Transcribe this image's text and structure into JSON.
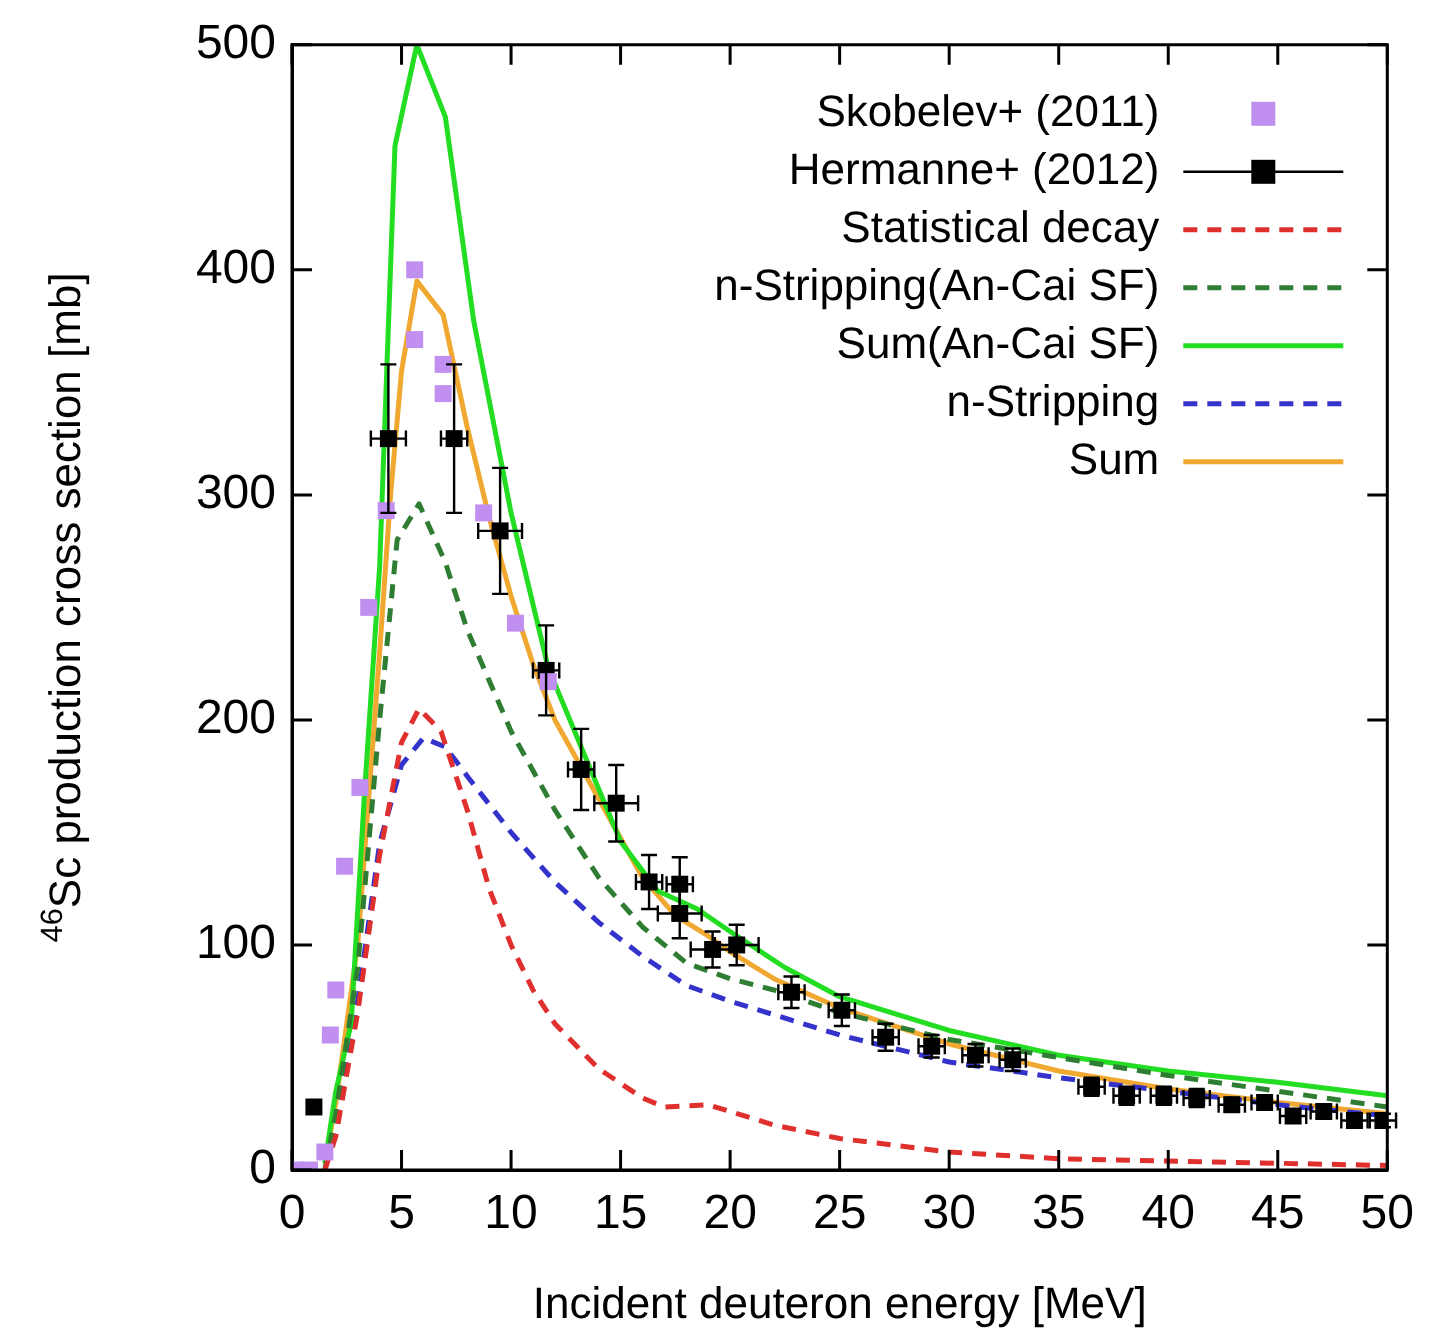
{
  "chart_data": {
    "type": "line",
    "xlabel": "Incident deuteron energy [MeV]",
    "ylabel": "$^{46}$Sc production cross section [mb]",
    "xlim": [
      0,
      50
    ],
    "xticks": [
      0,
      5,
      10,
      15,
      20,
      25,
      30,
      35,
      40,
      45,
      50
    ],
    "ylim": [
      0,
      500
    ],
    "yticks": [
      0,
      100,
      200,
      300,
      400,
      500
    ],
    "grid": false,
    "legend": "top right",
    "series": [
      {
        "name": "Skobelev+ (2011)",
        "type": "scatter",
        "marker": "square",
        "color": "#c08ff0",
        "x": [
          0.2,
          0.8,
          1.5,
          1.75,
          2.0,
          2.4,
          3.1,
          3.5,
          4.3,
          5.6,
          5.6,
          6.9,
          6.9,
          8.75,
          10.2,
          11.7
        ],
        "values": [
          0,
          0,
          8,
          60,
          80,
          135,
          170,
          250,
          293,
          400,
          369,
          358,
          345,
          292,
          243,
          217
        ]
      },
      {
        "name": "Hermanne+ (2012)",
        "type": "scatter",
        "marker": "square",
        "color": "#000000",
        "x": [
          1.0,
          4.4,
          7.4,
          9.5,
          11.6,
          13.2,
          14.8,
          16.3,
          17.7,
          17.7,
          19.2,
          20.3,
          22.8,
          25.1,
          27.1,
          29.2,
          31.2,
          32.9,
          36.5,
          38.1,
          39.8,
          41.3,
          42.9,
          44.4,
          45.7,
          47.1,
          48.5,
          49.8
        ],
        "values": [
          28,
          325,
          325,
          284,
          222,
          178,
          163,
          128,
          127,
          114,
          98,
          100,
          79,
          71,
          59,
          55,
          51,
          49,
          37,
          33,
          33,
          32,
          29,
          30,
          24,
          26,
          22,
          22
        ],
        "errors": [
          2,
          33,
          33,
          28,
          20,
          18,
          17,
          12,
          12,
          11,
          8,
          9,
          7,
          7,
          6,
          5,
          5,
          5,
          4,
          4,
          4,
          4,
          3,
          3,
          3,
          3,
          3,
          3
        ],
        "xerrors": [
          0.3,
          0.8,
          0.6,
          1,
          0.6,
          0.6,
          1,
          0.6,
          0.6,
          1,
          1,
          1,
          0.6,
          0.6,
          0.6,
          0.6,
          0.6,
          0.6,
          0.6,
          0.6,
          0.6,
          0.6,
          0.6,
          0.6,
          0.6,
          0.6,
          0.6,
          0.6
        ]
      },
      {
        "name": "Statistical decay",
        "type": "line",
        "marker": "none",
        "line_style": "dashed",
        "color": "#e0302e",
        "x": [
          1.5,
          2,
          3,
          4,
          5,
          5.8,
          6.8,
          8,
          9,
          10,
          11,
          12,
          14,
          16,
          17,
          19,
          20,
          22,
          25,
          30,
          35,
          40,
          45,
          50
        ],
        "values": [
          0,
          15,
          70,
          140,
          190,
          205,
          195,
          160,
          125,
          100,
          80,
          65,
          45,
          32,
          28,
          29,
          26,
          20,
          14,
          8,
          5,
          4,
          3,
          2
        ]
      },
      {
        "name": "n-Stripping(An-Cai SF)",
        "type": "line",
        "marker": "none",
        "line_style": "dashed",
        "color": "#2e7d32",
        "x": [
          1.5,
          2,
          3,
          4,
          4.8,
          5.8,
          7,
          8,
          10,
          12,
          14,
          16,
          18,
          20,
          22,
          25,
          30,
          35,
          40,
          45,
          50
        ],
        "values": [
          0,
          25,
          90,
          200,
          280,
          296,
          270,
          240,
          195,
          160,
          130,
          108,
          92,
          85,
          80,
          70,
          58,
          50,
          42,
          35,
          28
        ]
      },
      {
        "name": "Sum(An-Cai SF)",
        "type": "line",
        "marker": "none",
        "line_style": "solid",
        "color": "#22dd22",
        "x": [
          1.5,
          2,
          2.7,
          3.3,
          4.0,
          4.7,
          5.7,
          7.0,
          8.3,
          10,
          11.7,
          15,
          16.7,
          18.5,
          20,
          22.5,
          25,
          30,
          35,
          40,
          45,
          50
        ],
        "values": [
          3,
          35,
          65,
          166,
          268,
          455,
          500,
          468,
          377,
          292,
          223,
          146,
          124,
          116,
          106,
          90,
          77,
          62,
          51,
          44,
          39,
          33
        ]
      },
      {
        "name": "n-Stripping",
        "type": "line",
        "marker": "none",
        "line_style": "dashed",
        "color": "#3333cc",
        "x": [
          1.5,
          2,
          3,
          4,
          5,
          6,
          7,
          8,
          10,
          12,
          14,
          16,
          18,
          20,
          25,
          30,
          35,
          40,
          45,
          50
        ],
        "values": [
          0,
          20,
          75,
          145,
          180,
          192,
          188,
          175,
          150,
          128,
          110,
          95,
          82,
          75,
          60,
          48,
          41,
          35,
          29,
          24
        ]
      },
      {
        "name": "Sum",
        "type": "line",
        "marker": "none",
        "line_style": "solid",
        "color": "#f0a830",
        "x": [
          1.5,
          2,
          3,
          4,
          4.5,
          5,
          5.7,
          6.9,
          8,
          9,
          10,
          11,
          12,
          14,
          16,
          17.5,
          19,
          20,
          22,
          25,
          30,
          35,
          40,
          45,
          50
        ],
        "values": [
          3,
          30,
          100,
          230,
          300,
          355,
          395,
          380,
          330,
          290,
          255,
          225,
          200,
          165,
          130,
          113,
          104,
          97,
          85,
          72,
          56,
          44,
          36,
          30,
          25
        ]
      }
    ]
  }
}
